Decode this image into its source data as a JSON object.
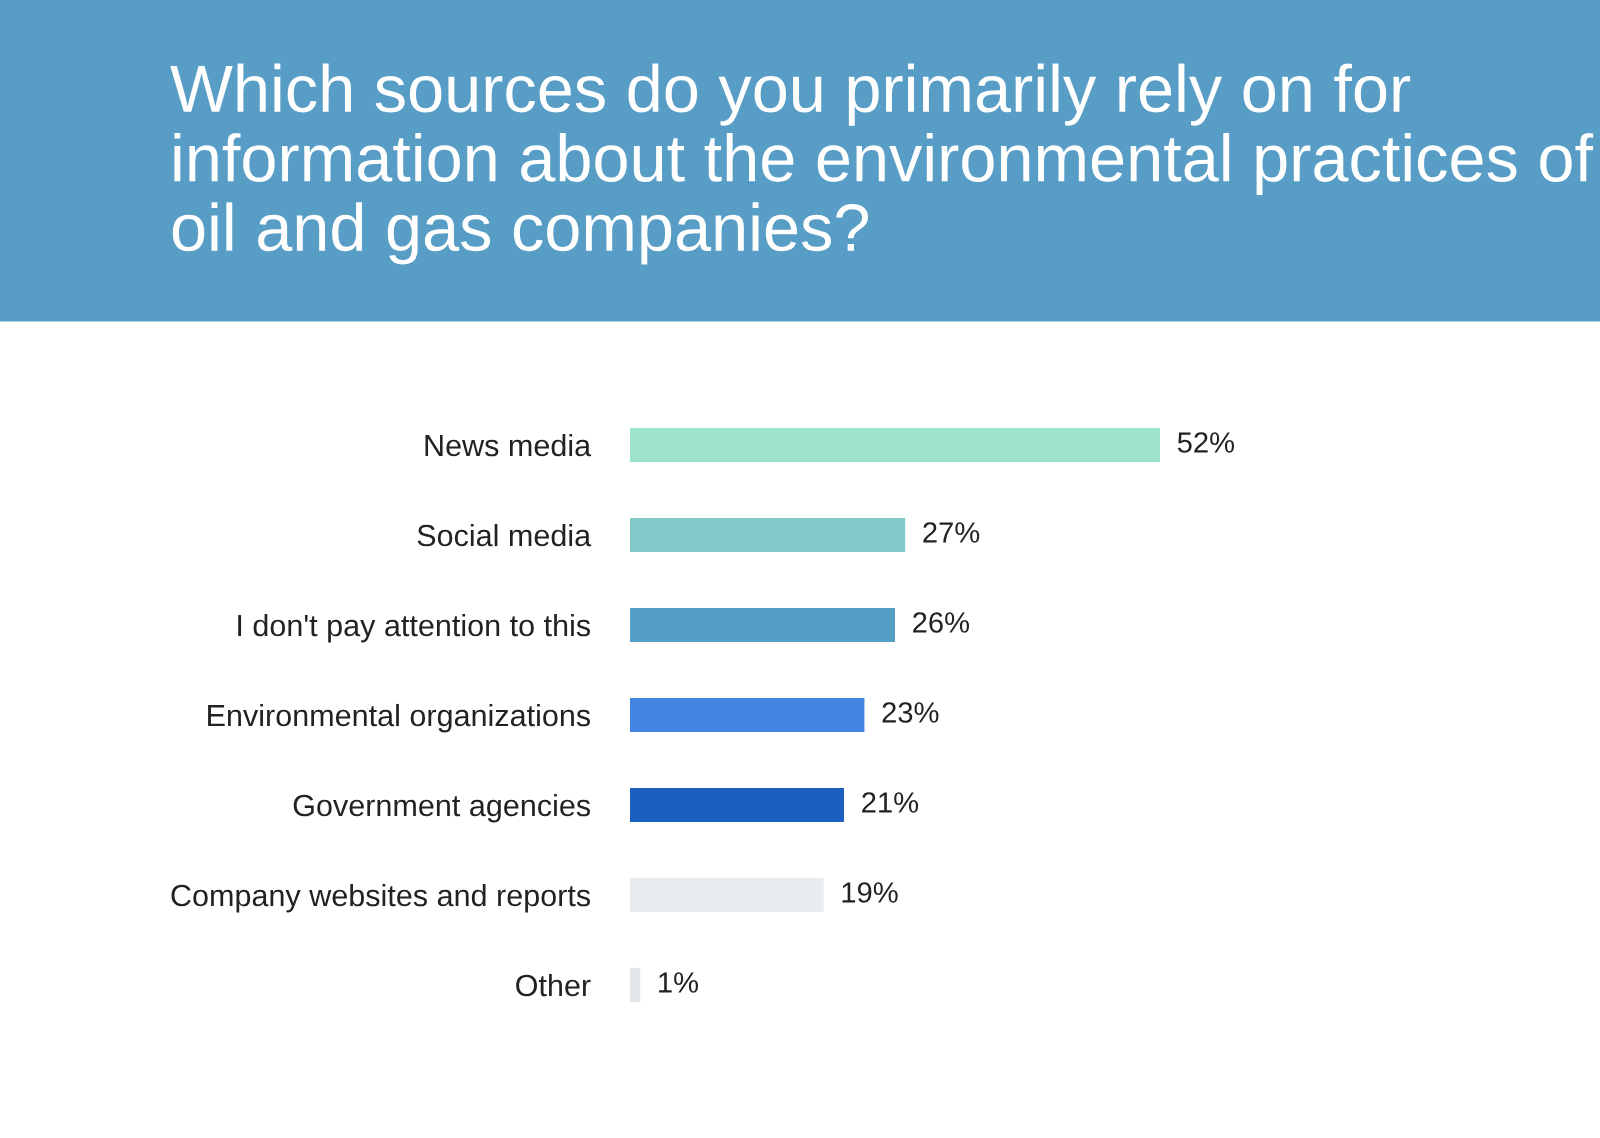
{
  "chart_data": {
    "type": "bar",
    "orientation": "horizontal",
    "title": "Which sources do you primarily rely on for information about the environmental practices of oil and gas companies?",
    "categories": [
      "News media",
      "Social media",
      "I don't pay attention to this",
      "Environmental organizations",
      "Government agencies",
      "Company websites and reports",
      "Other"
    ],
    "values": [
      52,
      27,
      26,
      23,
      21,
      19,
      1
    ],
    "colors": [
      "#9ee3cd",
      "#82c9ca",
      "#559fc7",
      "#4383e2",
      "#1b5fc1",
      "#e8ecef",
      "#e2e6ea"
    ],
    "value_labels": [
      "52%",
      "27%",
      "26%",
      "23%",
      "21%",
      "19%",
      "1%"
    ],
    "grid": false,
    "legend": false
  }
}
